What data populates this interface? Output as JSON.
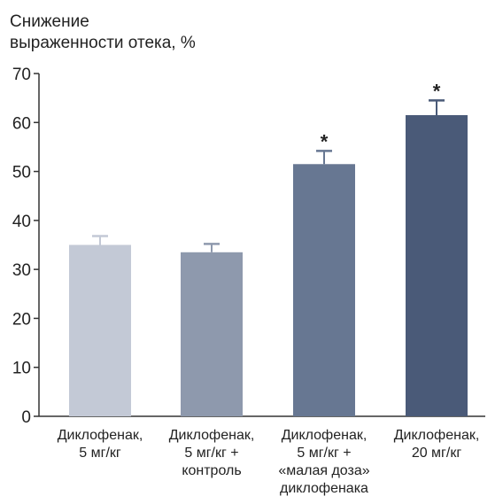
{
  "chart_data": {
    "type": "bar",
    "ylabel_lines": [
      "Снижение",
      "выраженности отека, %"
    ],
    "ylim": [
      0,
      70
    ],
    "yticks": [
      0,
      10,
      20,
      30,
      40,
      50,
      60,
      70
    ],
    "grid": false,
    "legend": "none",
    "categories": [
      [
        "Диклофенак,",
        "5 мг/кг"
      ],
      [
        "Диклофенак,",
        "5 мг/кг +",
        "контроль"
      ],
      [
        "Диклофенак,",
        "5 мг/кг +",
        "«малая доза»",
        "диклофенака"
      ],
      [
        "Диклофенак,",
        "20 мг/кг"
      ]
    ],
    "values": [
      35,
      33.5,
      51.5,
      61.5
    ],
    "errors": [
      1.8,
      1.7,
      2.7,
      3.0
    ],
    "significance": [
      "",
      "",
      "*",
      "*"
    ],
    "colors": [
      "#c3c9d6",
      "#8e99ad",
      "#677792",
      "#4a5a78"
    ]
  }
}
